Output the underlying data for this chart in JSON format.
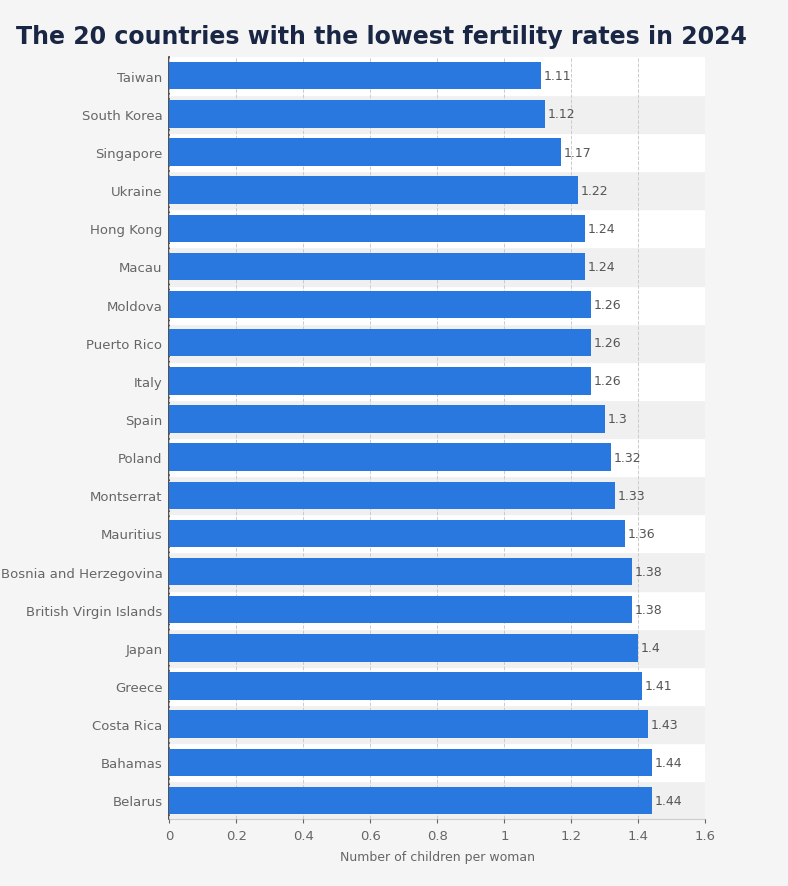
{
  "title": "The 20 countries with the lowest fertility rates in 2024",
  "xlabel": "Number of children per woman",
  "countries": [
    "Taiwan",
    "South Korea",
    "Singapore",
    "Ukraine",
    "Hong Kong",
    "Macau",
    "Moldova",
    "Puerto Rico",
    "Italy",
    "Spain",
    "Poland",
    "Montserrat",
    "Mauritius",
    "Bosnia and Herzegovina",
    "British Virgin Islands",
    "Japan",
    "Greece",
    "Costa Rica",
    "Bahamas",
    "Belarus"
  ],
  "values": [
    1.11,
    1.12,
    1.17,
    1.22,
    1.24,
    1.24,
    1.26,
    1.26,
    1.26,
    1.3,
    1.32,
    1.33,
    1.36,
    1.38,
    1.38,
    1.4,
    1.41,
    1.43,
    1.44,
    1.44
  ],
  "bar_color": "#2878e0",
  "fig_background_color": "#f5f5f5",
  "plot_background_color": "#ffffff",
  "row_even_color": "#f0f0f0",
  "row_odd_color": "#ffffff",
  "title_color": "#1a2744",
  "label_color": "#666666",
  "value_color": "#555555",
  "grid_color": "#cccccc",
  "axis_line_color": "#333333",
  "xlim": [
    0,
    1.6
  ],
  "xticks": [
    0,
    0.2,
    0.4,
    0.6,
    0.8,
    1.0,
    1.2,
    1.4,
    1.6
  ],
  "title_fontsize": 17,
  "label_fontsize": 9.5,
  "value_fontsize": 9,
  "xlabel_fontsize": 9
}
